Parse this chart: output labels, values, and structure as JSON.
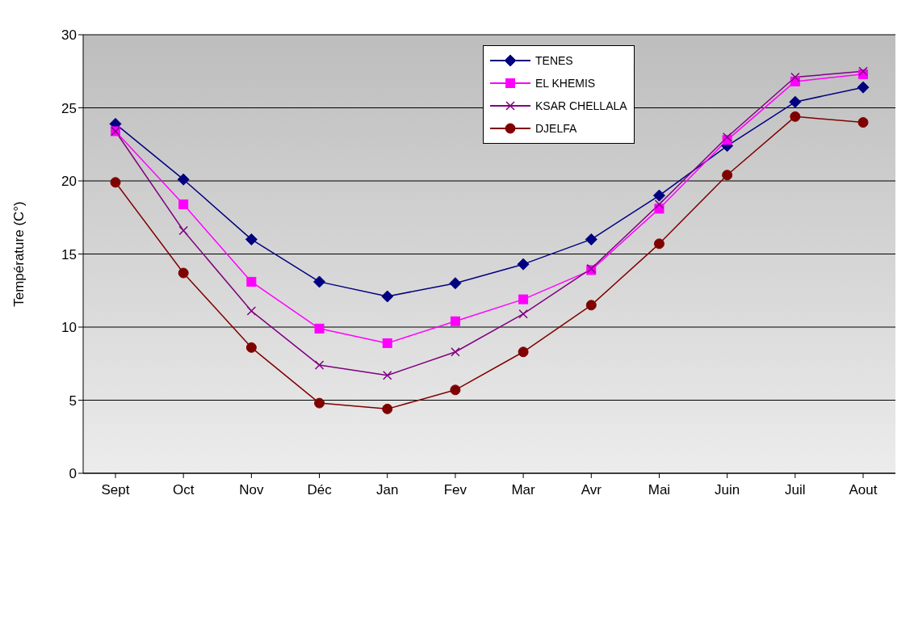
{
  "chart_data": {
    "type": "line",
    "ylabel": "Température (C°)",
    "categories": [
      "Sept",
      "Oct",
      "Nov",
      "Déc",
      "Jan",
      "Fev",
      "Mar",
      "Avr",
      "Mai",
      "Juin",
      "Juil",
      "Aout"
    ],
    "ylim": [
      0,
      30
    ],
    "yticks": [
      0,
      5,
      10,
      15,
      20,
      25,
      30
    ],
    "grid": "y",
    "legend": "top right",
    "series": [
      {
        "name": "TENES",
        "color": "#000080",
        "marker": "diamond",
        "values": [
          23.9,
          20.1,
          16.0,
          13.1,
          12.1,
          13.0,
          14.3,
          16.0,
          19.0,
          22.4,
          25.4,
          26.4
        ]
      },
      {
        "name": "EL KHEMIS",
        "color": "#ff00ff",
        "marker": "square",
        "values": [
          23.4,
          18.4,
          13.1,
          9.9,
          8.9,
          10.4,
          11.9,
          13.9,
          18.1,
          22.8,
          26.8,
          27.3
        ]
      },
      {
        "name": "KSAR CHELLALA",
        "color": "#800080",
        "marker": "cross",
        "values": [
          23.4,
          16.6,
          11.1,
          7.4,
          6.7,
          8.3,
          10.9,
          14.0,
          18.4,
          23.0,
          27.1,
          27.5
        ]
      },
      {
        "name": "DJELFA",
        "color": "#800000",
        "marker": "circle",
        "values": [
          19.9,
          13.7,
          8.6,
          4.8,
          4.4,
          5.7,
          8.3,
          11.5,
          15.7,
          20.4,
          24.4,
          24.0
        ]
      }
    ]
  }
}
